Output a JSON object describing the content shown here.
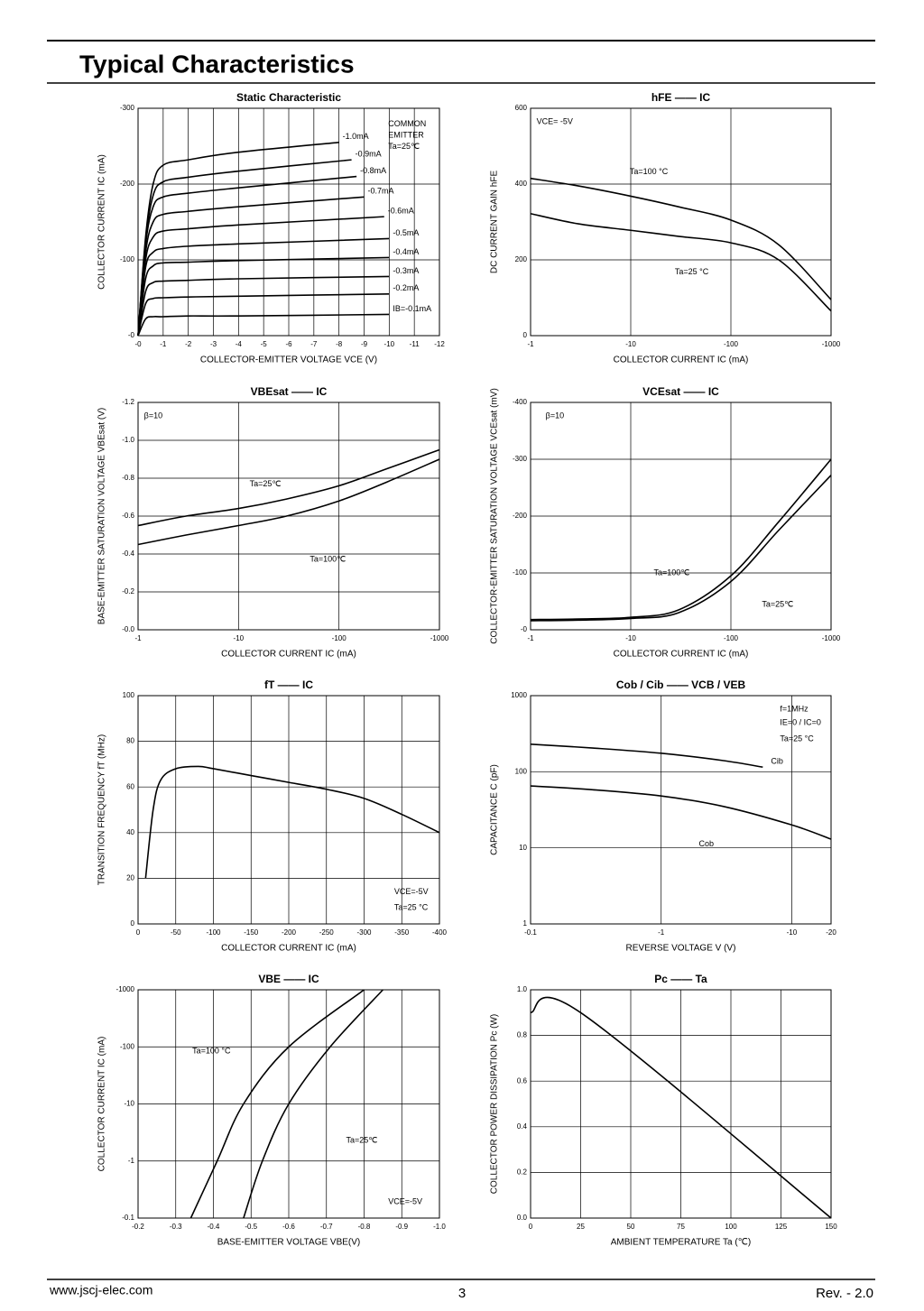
{
  "header": {
    "title": "Typical Characteristics"
  },
  "footer": {
    "website": "www.jscj-elec.com",
    "page": "3",
    "revision": "Rev. - 2.0"
  },
  "chart_data": [
    {
      "type": "line",
      "title": "Static Characteristic",
      "xlabel": "COLLECTOR-EMITTER VOLTAGE VCE (V)",
      "ylabel": "COLLECTOR CURRENT IC (mA)",
      "color": "#000000",
      "grid": true,
      "xlim": [
        0,
        -12
      ],
      "xticks": [
        {
          "value": 0,
          "label": "-0"
        },
        -1,
        -2,
        -3,
        -4,
        -5,
        -6,
        -7,
        -8,
        -9,
        -10,
        -11,
        -12
      ],
      "ylim": [
        0,
        -300
      ],
      "yticks": [
        {
          "value": 0,
          "label": "-0"
        },
        -100,
        -200,
        -300
      ],
      "annotations": [
        "COMMON",
        "EMITTER",
        "Ta=25℃"
      ],
      "series": [
        {
          "name": "-1.0mA",
          "x": [
            0,
            -0.3,
            -0.6,
            -1,
            -2,
            -4,
            -8
          ],
          "values": [
            0,
            -130,
            -200,
            -225,
            -232,
            -242,
            -255
          ]
        },
        {
          "name": "-0.9mA",
          "x": [
            0,
            -0.3,
            -0.6,
            -1,
            -2,
            -4,
            -8.5
          ],
          "values": [
            0,
            -125,
            -185,
            -203,
            -209,
            -217,
            -232
          ]
        },
        {
          "name": "-0.8mA",
          "x": [
            0,
            -0.3,
            -0.6,
            -1,
            -2,
            -4,
            -8.7
          ],
          "values": [
            0,
            -120,
            -170,
            -183,
            -188,
            -195,
            -210
          ]
        },
        {
          "name": "-0.7mA",
          "x": [
            0,
            -0.3,
            -0.6,
            -1,
            -2,
            -4,
            -9
          ],
          "values": [
            0,
            -110,
            -150,
            -160,
            -164,
            -170,
            -183
          ]
        },
        {
          "name": "-0.6mA",
          "x": [
            0,
            -0.3,
            -0.6,
            -1,
            -2,
            -4,
            -9.8
          ],
          "values": [
            0,
            -100,
            -130,
            -138,
            -141,
            -146,
            -157
          ]
        },
        {
          "name": "-0.5mA",
          "x": [
            0,
            -0.3,
            -0.6,
            -1,
            -2,
            -4,
            -10
          ],
          "values": [
            0,
            -90,
            -110,
            -115,
            -118,
            -121,
            -128
          ]
        },
        {
          "name": "-0.4mA",
          "x": [
            0,
            -0.3,
            -0.6,
            -1,
            -2,
            -4,
            -10
          ],
          "values": [
            0,
            -75,
            -92,
            -96,
            -97,
            -99,
            -103
          ]
        },
        {
          "name": "-0.3mA",
          "x": [
            0,
            -0.3,
            -0.6,
            -1,
            -2,
            -4,
            -10
          ],
          "values": [
            0,
            -58,
            -70,
            -72,
            -73,
            -75,
            -78
          ]
        },
        {
          "name": "-0.2mA",
          "x": [
            0,
            -0.3,
            -0.6,
            -1,
            -2,
            -4,
            -10
          ],
          "values": [
            0,
            -42,
            -49,
            -50,
            -51,
            -52,
            -55
          ]
        },
        {
          "name": "IB=-0.1mA",
          "x": [
            0,
            -0.3,
            -0.6,
            -1,
            -2,
            -4,
            -10
          ],
          "values": [
            0,
            -22,
            -25,
            -25,
            -26,
            -26,
            -28
          ]
        }
      ]
    },
    {
      "type": "line",
      "title": "hFE —— IC",
      "xlabel": "COLLECTOR CURRENT IC (mA)",
      "ylabel": "DC CURRENT GAIN hFE",
      "color": "#000000",
      "grid": true,
      "xlog": true,
      "xlim": [
        -1,
        -1000
      ],
      "xticks": [
        -1,
        -10,
        -100,
        -1000
      ],
      "ylim": [
        0,
        600
      ],
      "yticks": [
        0,
        200,
        400,
        600
      ],
      "annotations": [
        "VCE= -5V"
      ],
      "series": [
        {
          "name": "Ta=100 °C",
          "x": [
            -1,
            -3,
            -10,
            -30,
            -100,
            -300,
            -1000
          ],
          "values": [
            415,
            395,
            368,
            340,
            305,
            240,
            95
          ]
        },
        {
          "name": "Ta=25 °C",
          "x": [
            -1,
            -3,
            -10,
            -30,
            -100,
            -300,
            -1000
          ],
          "values": [
            322,
            295,
            278,
            262,
            245,
            200,
            65
          ]
        }
      ]
    },
    {
      "type": "line",
      "title": "VBEsat —— IC",
      "xlabel": "COLLECTOR CURRENT IC (mA)",
      "ylabel": "BASE-EMITTER SATURATION VOLTAGE VBEsat (V)",
      "color": "#000000",
      "grid": true,
      "xlog": true,
      "xlim": [
        -1,
        -1000
      ],
      "xticks": [
        -1,
        -10,
        -100,
        -1000
      ],
      "ylim": [
        0,
        -1.2
      ],
      "yticks": [
        {
          "value": 0,
          "label": "-0.0"
        },
        -0.2,
        -0.4,
        -0.6,
        -0.8,
        {
          "value": -1,
          "label": "-1.0"
        },
        -1.2
      ],
      "annotations": [
        "β=10"
      ],
      "series": [
        {
          "name": "Ta=25℃",
          "x": [
            -1,
            -3,
            -10,
            -30,
            -100,
            -300,
            -1000
          ],
          "values": [
            -0.55,
            -0.6,
            -0.64,
            -0.69,
            -0.76,
            -0.85,
            -0.95
          ]
        },
        {
          "name": "Ta=100℃",
          "x": [
            -1,
            -3,
            -10,
            -30,
            -100,
            -300,
            -1000
          ],
          "values": [
            -0.45,
            -0.5,
            -0.55,
            -0.6,
            -0.68,
            -0.78,
            -0.9
          ]
        }
      ]
    },
    {
      "type": "line",
      "title": "VCEsat —— IC",
      "xlabel": "COLLECTOR CURRENT IC (mA)",
      "ylabel": "COLLECTOR-EMITTER SATURATION VOLTAGE VCEsat (mV)",
      "color": "#000000",
      "grid": true,
      "xlog": true,
      "xlim": [
        -1,
        -1000
      ],
      "xticks": [
        -1,
        -10,
        -100,
        -1000
      ],
      "ylim": [
        0,
        -400
      ],
      "yticks": [
        {
          "value": 0,
          "label": "-0"
        },
        -100,
        -200,
        -300,
        -400
      ],
      "annotations": [
        "β=10"
      ],
      "series": [
        {
          "name": "Ta=100℃",
          "x": [
            -1,
            -3,
            -10,
            -30,
            -100,
            -300,
            -1000
          ],
          "values": [
            -18,
            -19,
            -22,
            -35,
            -95,
            -190,
            -300
          ]
        },
        {
          "name": "Ta=25℃",
          "x": [
            -1,
            -3,
            -10,
            -30,
            -100,
            -300,
            -1000
          ],
          "values": [
            -16,
            -17,
            -20,
            -30,
            -85,
            -175,
            -272
          ]
        }
      ]
    },
    {
      "type": "line",
      "title": "fT —— IC",
      "xlabel": "COLLECTOR CURRENT IC (mA)",
      "ylabel": "TRANSITION FREQUENCY fT (MHz)",
      "color": "#000000",
      "grid": true,
      "xlim": [
        0,
        -400
      ],
      "xticks": [
        0,
        -50,
        -100,
        -150,
        -200,
        -250,
        -300,
        -350,
        -400
      ],
      "ylim": [
        0,
        100
      ],
      "yticks": [
        0,
        20,
        40,
        60,
        80,
        100
      ],
      "annotations": [
        "VCE=-5V",
        "Ta=25 °C"
      ],
      "series": [
        {
          "x": [
            -10,
            -20,
            -30,
            -50,
            -80,
            -100,
            -150,
            -200,
            -250,
            -300,
            -350,
            -400
          ],
          "values": [
            20,
            50,
            63,
            68,
            69,
            68,
            65,
            62,
            59,
            55,
            48,
            40
          ]
        }
      ]
    },
    {
      "type": "line",
      "title": "Cob / Cib —— VCB / VEB",
      "xlabel": "REVERSE VOLTAGE V (V)",
      "ylabel": "CAPACITANCE C (pF)",
      "color": "#000000",
      "grid": true,
      "xlog": true,
      "ylog": true,
      "xlim": [
        -0.1,
        -20
      ],
      "xticks": [
        -0.1,
        -1,
        -10,
        -20
      ],
      "ylim": [
        1,
        1000
      ],
      "yticks": [
        1,
        10,
        100,
        1000
      ],
      "annotations": [
        "f=1MHz",
        "IE=0 / IC=0",
        "Ta=25 °C"
      ],
      "series": [
        {
          "name": "Cib",
          "x": [
            -0.1,
            -0.3,
            -1,
            -3,
            -6
          ],
          "values": [
            230,
            205,
            175,
            140,
            115
          ]
        },
        {
          "name": "Cob",
          "x": [
            -0.1,
            -0.3,
            -1,
            -3,
            -10,
            -20
          ],
          "values": [
            65,
            58,
            48,
            35,
            20,
            13
          ]
        }
      ]
    },
    {
      "type": "line",
      "title": "VBE —— IC",
      "xlabel": "BASE-EMITTER VOLTAGE VBE(V)",
      "ylabel": "COLLECTOR CURRENT IC (mA)",
      "color": "#000000",
      "grid": true,
      "ylog": true,
      "xlim": [
        -0.2,
        -1
      ],
      "xticks": [
        -0.2,
        -0.3,
        -0.4,
        -0.5,
        -0.6,
        -0.7,
        -0.8,
        -0.9,
        {
          "value": -1,
          "label": "-1.0"
        }
      ],
      "ylim": [
        -0.1,
        -1000
      ],
      "yticks": [
        -0.1,
        -1,
        -10,
        -100,
        -1000
      ],
      "annotations": [
        "VCE=-5V"
      ],
      "series": [
        {
          "name": "Ta=100 °C",
          "x": [
            -0.34,
            -0.41,
            -0.48,
            -0.6,
            -0.8
          ],
          "values": [
            -0.1,
            -1,
            -10,
            -100,
            -1000
          ]
        },
        {
          "name": "Ta=25℃",
          "x": [
            -0.48,
            -0.53,
            -0.6,
            -0.71,
            -0.85
          ],
          "values": [
            -0.1,
            -1,
            -10,
            -100,
            -1000
          ]
        }
      ]
    },
    {
      "type": "line",
      "title": "Pc —— Ta",
      "xlabel": "AMBIENT TEMPERATURE Ta (℃)",
      "ylabel": "COLLECTOR POWER DISSIPATION Pc (W)",
      "color": "#000000",
      "grid": true,
      "xlim": [
        0,
        150
      ],
      "xticks": [
        0,
        25,
        50,
        75,
        100,
        125,
        150
      ],
      "ylim": [
        0,
        1
      ],
      "yticks": [
        {
          "value": 0,
          "label": "0.0"
        },
        0.2,
        0.4,
        0.6,
        0.8,
        {
          "value": 1,
          "label": "1.0"
        }
      ],
      "series": [
        {
          "x": [
            0,
            25,
            150
          ],
          "values": [
            0.9,
            0.9,
            0
          ]
        }
      ]
    }
  ]
}
